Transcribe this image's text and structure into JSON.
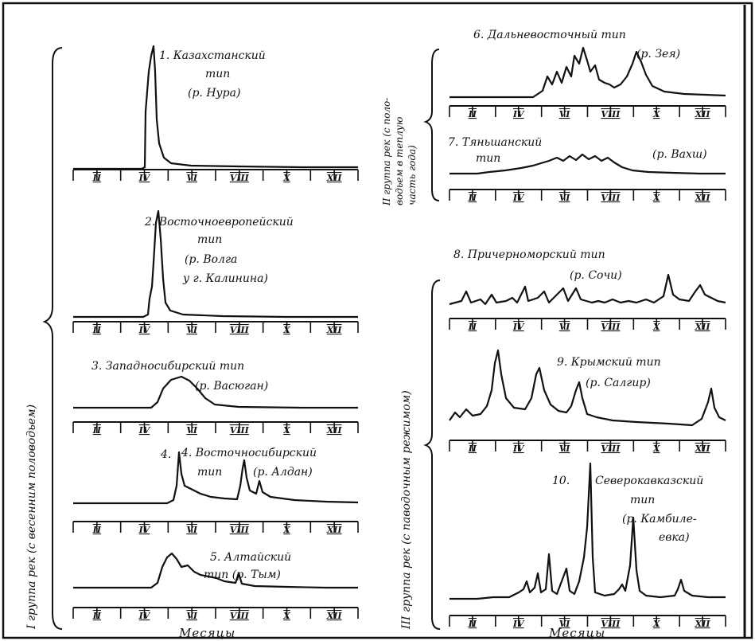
{
  "x_axis_label": "Месяцы",
  "month_labels": [
    "II",
    "IV",
    "VI",
    "VIII",
    "X",
    "XII"
  ],
  "groups": {
    "group1": "I группа рек (с весенним половодьем)",
    "group2_line1": "II группа рек (с поло-",
    "group2_line2": "водьем в теплую",
    "group2_line3": "часть года)",
    "group3": "III группа рек (с паводочным режимом)"
  },
  "panels": {
    "p1": {
      "lines": [
        "1. Казахстанский",
        "тип",
        "(р. Нура)"
      ]
    },
    "p2": {
      "lines": [
        "2. Восточноевропейский",
        "тип",
        "(р. Волга",
        "у г. Калинина)"
      ]
    },
    "p3": {
      "lines": [
        "3. Западносибирский тип",
        "(р. Васюган)"
      ]
    },
    "p4": {
      "lines": [
        "4. Восточносибирский",
        "тип",
        "(р. Алдан)"
      ]
    },
    "p5": {
      "lines": [
        "5. Алтайский",
        "тип (р. Тым)"
      ]
    },
    "p6": {
      "lines": [
        "6. Дальневосточный тип",
        "(р. Зея)"
      ]
    },
    "p7": {
      "lines": [
        "7. Тяньшанский",
        "тип",
        "(р. Вахш)"
      ]
    },
    "p8": {
      "lines": [
        "8. Причерноморский тип",
        "(р. Сочи)"
      ]
    },
    "p9": {
      "lines": [
        "9. Крымский тип",
        "(р. Салгир)"
      ]
    },
    "p10": {
      "lines": [
        "10.",
        "Северокавказский",
        "тип",
        "(р. Камбиле-",
        "евка)"
      ]
    }
  }
}
